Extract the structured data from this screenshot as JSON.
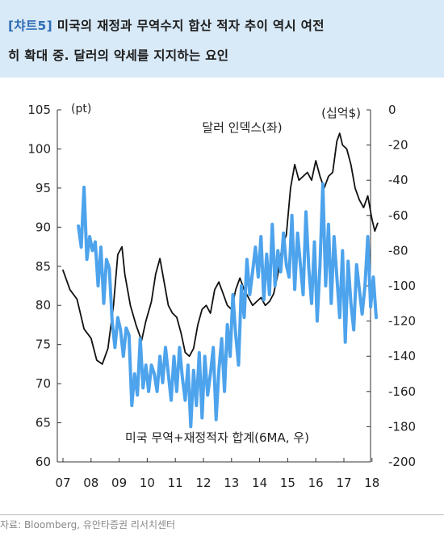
{
  "header": {
    "tag": "[챠트5]",
    "title_line1": "미국의 재정과 무역수지 합산 적자 추이 역시 여전",
    "title_line2": "히 확대 중. 달러의 약세를 지지하는 요인"
  },
  "source": "자료: Bloomberg, 유안타증권 리서치센터",
  "colors": {
    "dollar_index": "#111111",
    "balance": "#4da3ec",
    "header_bg": "#d8e9f7",
    "tag": "#2f6db5"
  },
  "chart_data": {
    "type": "line",
    "left_unit": "(pt)",
    "right_unit": "(십억$)",
    "x_ticks": [
      "07",
      "08",
      "09",
      "10",
      "11",
      "12",
      "13",
      "14",
      "15",
      "16",
      "17",
      "18"
    ],
    "y_left": {
      "ticks": [
        105,
        100,
        95,
        90,
        85,
        80,
        75,
        70,
        65,
        60
      ],
      "range": [
        60,
        105
      ]
    },
    "y_right": {
      "ticks": [
        0,
        -20,
        -40,
        -60,
        -80,
        -100,
        -120,
        -140,
        -160,
        -180,
        -200
      ],
      "range": [
        -200,
        0
      ]
    },
    "annotations": {
      "dollar": "달러 인덱스(좌)",
      "balance": "미국 무역+재정적자 합계(6MA, 우)"
    },
    "series": [
      {
        "name": "달러 인덱스(좌)",
        "axis": "left",
        "color": "#111111",
        "x": [
          2007.0,
          2007.25,
          2007.5,
          2007.75,
          2008.0,
          2008.2,
          2008.4,
          2008.6,
          2008.8,
          2008.95,
          2009.1,
          2009.2,
          2009.4,
          2009.6,
          2009.8,
          2009.95,
          2010.15,
          2010.3,
          2010.45,
          2010.6,
          2010.75,
          2010.9,
          2011.05,
          2011.2,
          2011.35,
          2011.5,
          2011.65,
          2011.8,
          2011.95,
          2012.1,
          2012.25,
          2012.4,
          2012.55,
          2012.7,
          2012.85,
          2013.0,
          2013.15,
          2013.3,
          2013.45,
          2013.6,
          2013.75,
          2013.9,
          2014.05,
          2014.2,
          2014.35,
          2014.5,
          2014.65,
          2014.8,
          2014.95,
          2015.1,
          2015.25,
          2015.4,
          2015.55,
          2015.7,
          2015.85,
          2016.0,
          2016.15,
          2016.3,
          2016.45,
          2016.6,
          2016.75,
          2016.85,
          2016.95,
          2017.1,
          2017.25,
          2017.4,
          2017.55,
          2017.7,
          2017.85,
          2018.0,
          2018.1,
          2018.2
        ],
        "values": [
          84.5,
          82.0,
          80.8,
          77.0,
          75.8,
          73.0,
          72.5,
          74.5,
          80.0,
          86.5,
          87.5,
          84.0,
          80.0,
          77.5,
          75.5,
          78.0,
          80.5,
          84.0,
          86.0,
          83.0,
          80.0,
          79.0,
          78.5,
          76.5,
          74.0,
          73.5,
          74.5,
          77.5,
          79.5,
          80.0,
          79.0,
          82.0,
          83.0,
          81.5,
          80.0,
          79.5,
          82.0,
          83.5,
          82.0,
          81.0,
          80.0,
          80.5,
          81.0,
          80.0,
          80.5,
          81.5,
          84.0,
          87.5,
          89.0,
          95.0,
          98.0,
          96.0,
          96.5,
          97.0,
          96.0,
          98.5,
          96.5,
          95.0,
          96.5,
          97.0,
          101.0,
          102.0,
          100.5,
          100.0,
          98.0,
          95.0,
          93.5,
          92.5,
          94.0,
          91.0,
          89.5,
          90.5
        ]
      },
      {
        "name": "미국 무역+재정적자 합계(6MA, 우)",
        "axis": "right",
        "color": "#4da3ec",
        "x": [
          2007.55,
          2007.65,
          2007.75,
          2007.85,
          2007.95,
          2008.05,
          2008.15,
          2008.25,
          2008.35,
          2008.45,
          2008.55,
          2008.65,
          2008.75,
          2008.85,
          2008.95,
          2009.05,
          2009.15,
          2009.25,
          2009.35,
          2009.45,
          2009.55,
          2009.65,
          2009.75,
          2009.85,
          2009.95,
          2010.05,
          2010.15,
          2010.25,
          2010.35,
          2010.45,
          2010.55,
          2010.65,
          2010.75,
          2010.85,
          2010.95,
          2011.05,
          2011.15,
          2011.25,
          2011.35,
          2011.45,
          2011.55,
          2011.65,
          2011.75,
          2011.85,
          2011.95,
          2012.05,
          2012.15,
          2012.25,
          2012.35,
          2012.45,
          2012.55,
          2012.65,
          2012.75,
          2012.85,
          2012.95,
          2013.05,
          2013.15,
          2013.25,
          2013.35,
          2013.45,
          2013.55,
          2013.65,
          2013.75,
          2013.85,
          2013.95,
          2014.05,
          2014.15,
          2014.25,
          2014.35,
          2014.45,
          2014.55,
          2014.65,
          2014.75,
          2014.85,
          2014.95,
          2015.05,
          2015.15,
          2015.25,
          2015.35,
          2015.45,
          2015.55,
          2015.65,
          2015.75,
          2015.85,
          2015.95,
          2016.05,
          2016.15,
          2016.25,
          2016.35,
          2016.45,
          2016.55,
          2016.65,
          2016.75,
          2016.85,
          2016.95,
          2017.05,
          2017.15,
          2017.25,
          2017.35,
          2017.45,
          2017.55,
          2017.65,
          2017.75,
          2017.85,
          2017.95,
          2018.05,
          2018.15
        ],
        "values": [
          -66,
          -78,
          -44,
          -85,
          -72,
          -80,
          -75,
          -100,
          -78,
          -110,
          -85,
          -90,
          -120,
          -135,
          -118,
          -125,
          -140,
          -124,
          -128,
          -168,
          -150,
          -162,
          -130,
          -158,
          -145,
          -160,
          -145,
          -150,
          -160,
          -140,
          -155,
          -135,
          -150,
          -165,
          -140,
          -160,
          -135,
          -152,
          -165,
          -145,
          -180,
          -148,
          -168,
          -138,
          -175,
          -140,
          -162,
          -150,
          -135,
          -176,
          -148,
          -130,
          -160,
          -122,
          -140,
          -105,
          -128,
          -145,
          -100,
          -118,
          -85,
          -105,
          -92,
          -78,
          -95,
          -72,
          -108,
          -82,
          -105,
          -65,
          -100,
          -80,
          -92,
          -70,
          -88,
          -95,
          -60,
          -102,
          -70,
          -88,
          -105,
          -58,
          -90,
          -110,
          -75,
          -120,
          -88,
          -42,
          -100,
          -65,
          -110,
          -72,
          -95,
          -118,
          -80,
          -132,
          -86,
          -110,
          -125,
          -88,
          -102,
          -116,
          -100,
          -72,
          -112,
          -95,
          -118
        ]
      }
    ]
  }
}
